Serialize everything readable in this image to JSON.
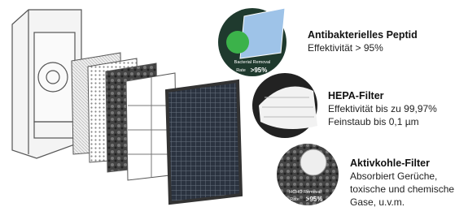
{
  "filters": [
    {
      "title": "Antibakterielles Peptid",
      "lines": [
        "Effektivität > 95%"
      ],
      "badge": {
        "caption": "Bacterial Removal",
        "rate_label": "Rate",
        "rate": ">95%"
      }
    },
    {
      "title": "HEPA-Filter",
      "lines": [
        "Effektivität bis zu 99,97%",
        "Feinstaub bis 0,1 µm"
      ]
    },
    {
      "title": "Aktivkohle-Filter",
      "lines": [
        "Absorbiert Gerüche,",
        "toxische und chemische",
        "Gase, u.v.m."
      ],
      "badge": {
        "caption": "HCHO Removal",
        "rate_label": "Rate",
        "rate": ">95%"
      }
    }
  ]
}
